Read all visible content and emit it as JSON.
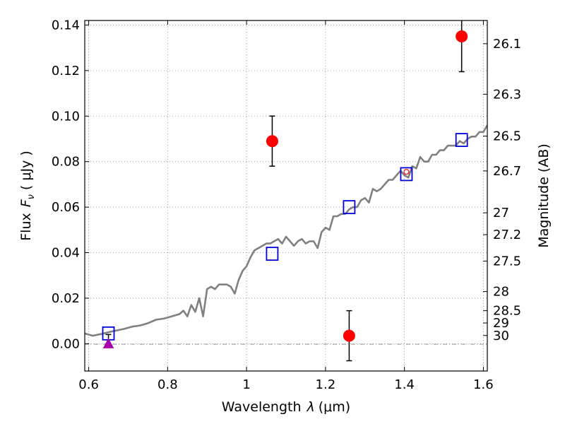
{
  "chart_data": {
    "type": "scatter",
    "title": "",
    "xlabel_text": "Wavelength",
    "xlabel_symbol": "λ",
    "xlabel_unit": "(μm)",
    "ylabel_text": "Flux",
    "ylabel_symbol": "F",
    "ylabel_subscript": "ν",
    "ylabel_unit": "( μJy )",
    "y2label": "Magnitude (AB)",
    "xlim": [
      0.59,
      1.61
    ],
    "ylim": [
      -0.012,
      0.142
    ],
    "grid": true,
    "legend": "none",
    "x_ticks": [
      0.6,
      0.8,
      1.0,
      1.2,
      1.4,
      1.6
    ],
    "x_tick_labels": [
      "0.6",
      "0.8",
      "1",
      "1.2",
      "1.4",
      "1.6"
    ],
    "y_ticks": [
      0.0,
      0.02,
      0.04,
      0.06,
      0.08,
      0.1,
      0.12,
      0.14
    ],
    "y_tick_labels": [
      "0.00",
      "0.02",
      "0.04",
      "0.06",
      "0.08",
      "0.10",
      "0.12",
      "0.14"
    ],
    "mag_ticks": [
      {
        "flux": 0.1318,
        "label": "26.1"
      },
      {
        "flux": 0.1096,
        "label": "26.3"
      },
      {
        "flux": 0.0912,
        "label": "26.5"
      },
      {
        "flux": 0.0759,
        "label": "26.7"
      },
      {
        "flux": 0.0575,
        "label": "27"
      },
      {
        "flux": 0.0479,
        "label": "27.2"
      },
      {
        "flux": 0.0363,
        "label": "27.5"
      },
      {
        "flux": 0.0229,
        "label": "28"
      },
      {
        "flux": 0.0145,
        "label": "28.5"
      },
      {
        "flux": 0.0091,
        "label": "29"
      },
      {
        "flux": 0.0036,
        "label": "30"
      }
    ],
    "series": [
      {
        "kind": "line",
        "color": "#808080",
        "x": [
          0.59,
          0.61,
          0.63,
          0.65,
          0.67,
          0.69,
          0.71,
          0.73,
          0.75,
          0.77,
          0.79,
          0.81,
          0.83,
          0.84,
          0.85,
          0.86,
          0.87,
          0.88,
          0.89,
          0.9,
          0.91,
          0.92,
          0.93,
          0.94,
          0.95,
          0.96,
          0.97,
          0.98,
          0.99,
          1.0,
          1.01,
          1.02,
          1.03,
          1.04,
          1.05,
          1.06,
          1.07,
          1.08,
          1.09,
          1.1,
          1.11,
          1.12,
          1.13,
          1.14,
          1.15,
          1.16,
          1.17,
          1.18,
          1.19,
          1.2,
          1.21,
          1.22,
          1.23,
          1.24,
          1.25,
          1.26,
          1.27,
          1.28,
          1.29,
          1.3,
          1.31,
          1.32,
          1.33,
          1.34,
          1.35,
          1.36,
          1.37,
          1.38,
          1.39,
          1.4,
          1.41,
          1.42,
          1.43,
          1.44,
          1.45,
          1.46,
          1.47,
          1.48,
          1.49,
          1.5,
          1.51,
          1.52,
          1.53,
          1.54,
          1.55,
          1.56,
          1.57,
          1.58,
          1.59,
          1.6,
          1.61
        ],
        "y": [
          0.0045,
          0.0035,
          0.0042,
          0.005,
          0.0058,
          0.0065,
          0.0075,
          0.008,
          0.009,
          0.0105,
          0.011,
          0.012,
          0.013,
          0.0145,
          0.012,
          0.017,
          0.014,
          0.02,
          0.012,
          0.024,
          0.025,
          0.024,
          0.026,
          0.026,
          0.026,
          0.025,
          0.022,
          0.028,
          0.032,
          0.034,
          0.038,
          0.041,
          0.042,
          0.043,
          0.044,
          0.044,
          0.045,
          0.046,
          0.044,
          0.047,
          0.045,
          0.043,
          0.045,
          0.046,
          0.044,
          0.045,
          0.045,
          0.042,
          0.049,
          0.051,
          0.05,
          0.056,
          0.056,
          0.057,
          0.057,
          0.059,
          0.06,
          0.06,
          0.063,
          0.064,
          0.062,
          0.068,
          0.067,
          0.068,
          0.07,
          0.072,
          0.072,
          0.074,
          0.076,
          0.074,
          0.073,
          0.078,
          0.077,
          0.082,
          0.08,
          0.08,
          0.083,
          0.083,
          0.085,
          0.085,
          0.087,
          0.087,
          0.087,
          0.089,
          0.088,
          0.09,
          0.091,
          0.091,
          0.093,
          0.093,
          0.096
        ]
      },
      {
        "kind": "squares",
        "color": "#0000dd",
        "x": [
          0.65,
          1.065,
          1.26,
          1.405,
          1.545
        ],
        "y": [
          0.0045,
          0.0395,
          0.06,
          0.0745,
          0.0895
        ]
      },
      {
        "kind": "points",
        "color": "#ff0000",
        "x": [
          1.065,
          1.26,
          1.405,
          1.545
        ],
        "y": [
          0.089,
          0.0035,
          0.0755,
          0.135
        ],
        "yerr": [
          0.011,
          0.011,
          0.0005,
          0.0155
        ]
      },
      {
        "kind": "triangle",
        "color": "#aa00aa",
        "x": [
          0.65
        ],
        "y": [
          0.0
        ]
      }
    ]
  }
}
